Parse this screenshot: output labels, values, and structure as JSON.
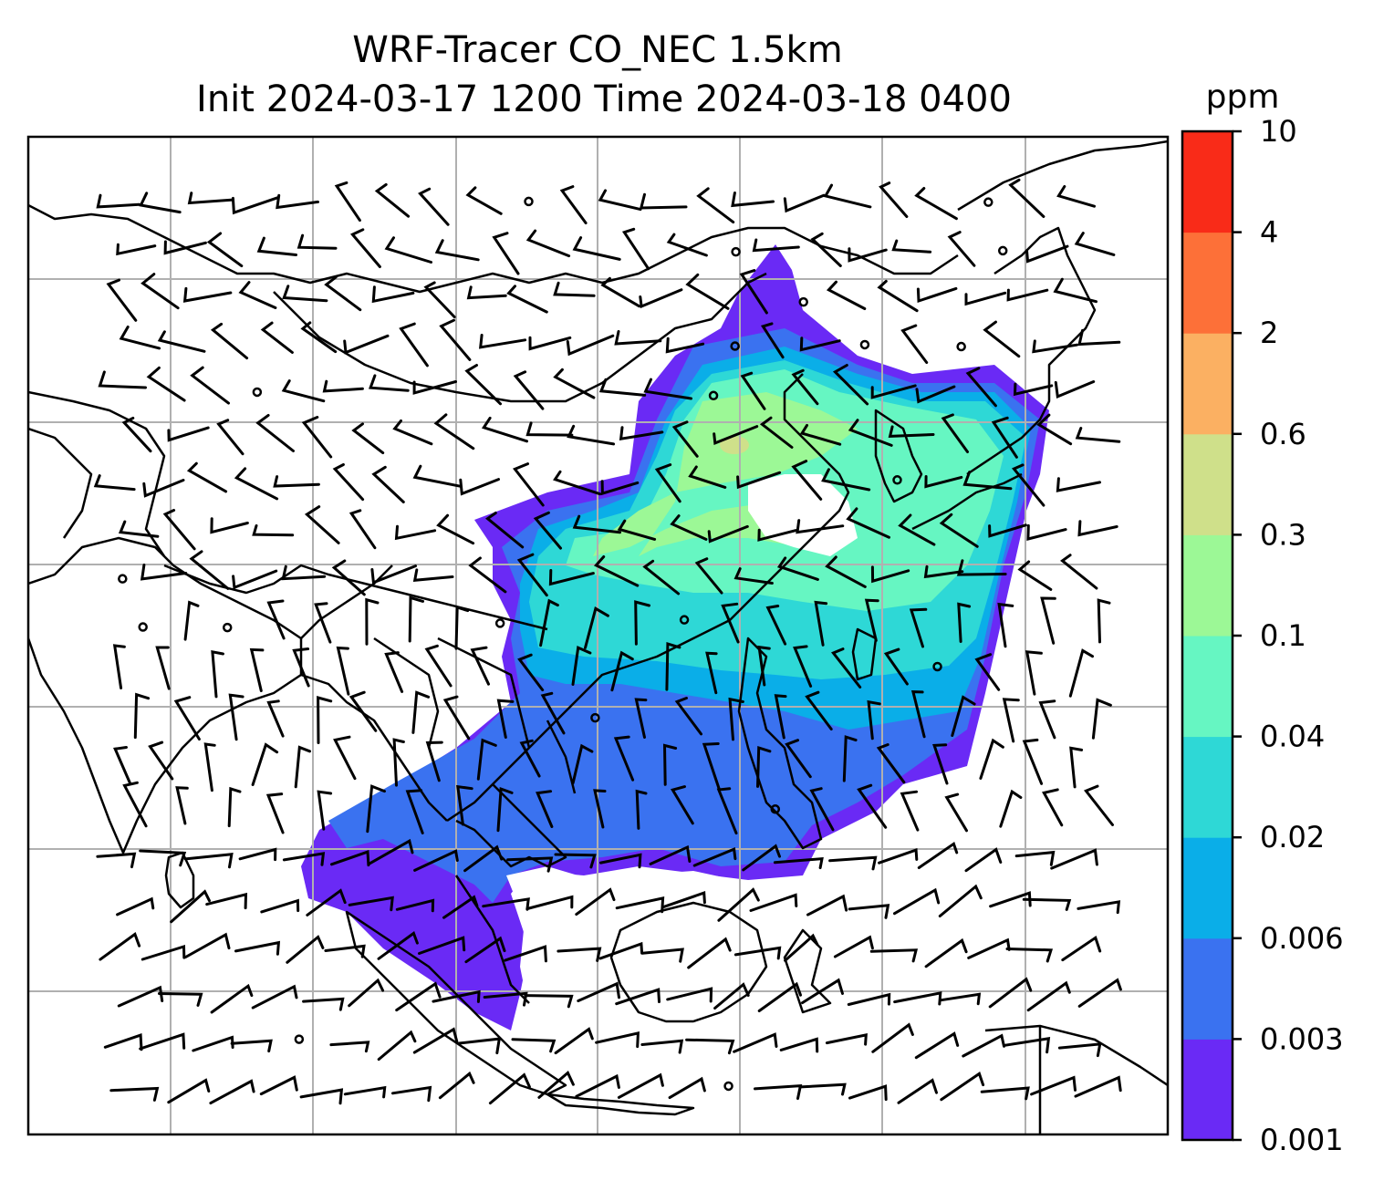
{
  "figure": {
    "title_line1": "WRF-Tracer CO_NEC 1.5km",
    "title_line2": "Init 2024-03-17 1200 Time 2024-03-18 0400"
  },
  "colorbar": {
    "unit": "ppm",
    "levels": [
      "0.001",
      "0.003",
      "0.006",
      "0.02",
      "0.04",
      "0.1",
      "0.3",
      "0.6",
      "2",
      "4",
      "10"
    ],
    "colors": [
      "#6a2af5",
      "#3a72f0",
      "#0aaee8",
      "#2ed8d6",
      "#66f6c2",
      "#9cf896",
      "#cfe08a",
      "#fbb062",
      "#fd7038",
      "#f92b18"
    ]
  },
  "map": {
    "gridlines": true,
    "coastlines": true,
    "country_borders": true,
    "wind_barbs": true
  }
}
